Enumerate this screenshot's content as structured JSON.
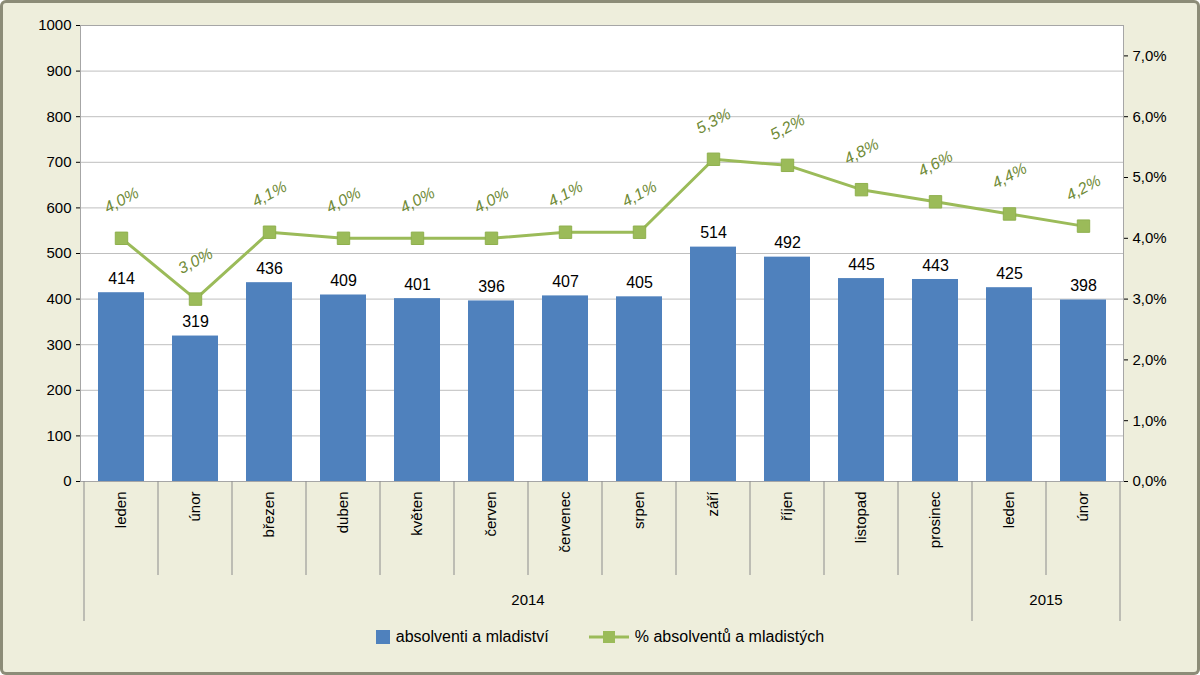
{
  "chart_data": {
    "type": "bar",
    "categories": [
      "leden",
      "únor",
      "březen",
      "duben",
      "květen",
      "červen",
      "červenec",
      "srpen",
      "září",
      "říjen",
      "listopad",
      "prosinec",
      "leden",
      "únor"
    ],
    "category_groups": [
      "2014",
      "2014",
      "2014",
      "2014",
      "2014",
      "2014",
      "2014",
      "2014",
      "2014",
      "2014",
      "2014",
      "2014",
      "2015",
      "2015"
    ],
    "series": [
      {
        "name": "absolventi a mladiství",
        "type": "bar",
        "color": "#4f81bd",
        "data_labels": true,
        "values": [
          414,
          319,
          436,
          409,
          401,
          396,
          407,
          405,
          514,
          492,
          445,
          443,
          425,
          398
        ]
      },
      {
        "name": "% absolventů a mladistých",
        "type": "line",
        "axis": "y2",
        "color": "#9bbb59",
        "marker": "square",
        "data_labels": true,
        "values": [
          4.0,
          3.0,
          4.1,
          4.0,
          4.0,
          4.0,
          4.1,
          4.1,
          5.3,
          5.2,
          4.8,
          4.6,
          4.4,
          4.2
        ],
        "value_labels": [
          "4,0%",
          "3,0%",
          "4,1%",
          "4,0%",
          "4,0%",
          "4,0%",
          "4,1%",
          "4,1%",
          "5,3%",
          "5,2%",
          "4,8%",
          "4,6%",
          "4,4%",
          "4,2%"
        ]
      }
    ],
    "ylim": [
      0,
      1000
    ],
    "yticks": [
      0,
      100,
      200,
      300,
      400,
      500,
      600,
      700,
      800,
      900,
      1000
    ],
    "y2lim": [
      0,
      7.5
    ],
    "y2ticks": [
      {
        "value": 0,
        "label": "0,0%"
      },
      {
        "value": 1,
        "label": "1,0%"
      },
      {
        "value": 2,
        "label": "2,0%"
      },
      {
        "value": 3,
        "label": "3,0%"
      },
      {
        "value": 4,
        "label": "4,0%"
      },
      {
        "value": 5,
        "label": "5,0%"
      },
      {
        "value": 6,
        "label": "6,0%"
      },
      {
        "value": 7,
        "label": "7,0%"
      }
    ],
    "grid": true,
    "legend": "bottom"
  }
}
